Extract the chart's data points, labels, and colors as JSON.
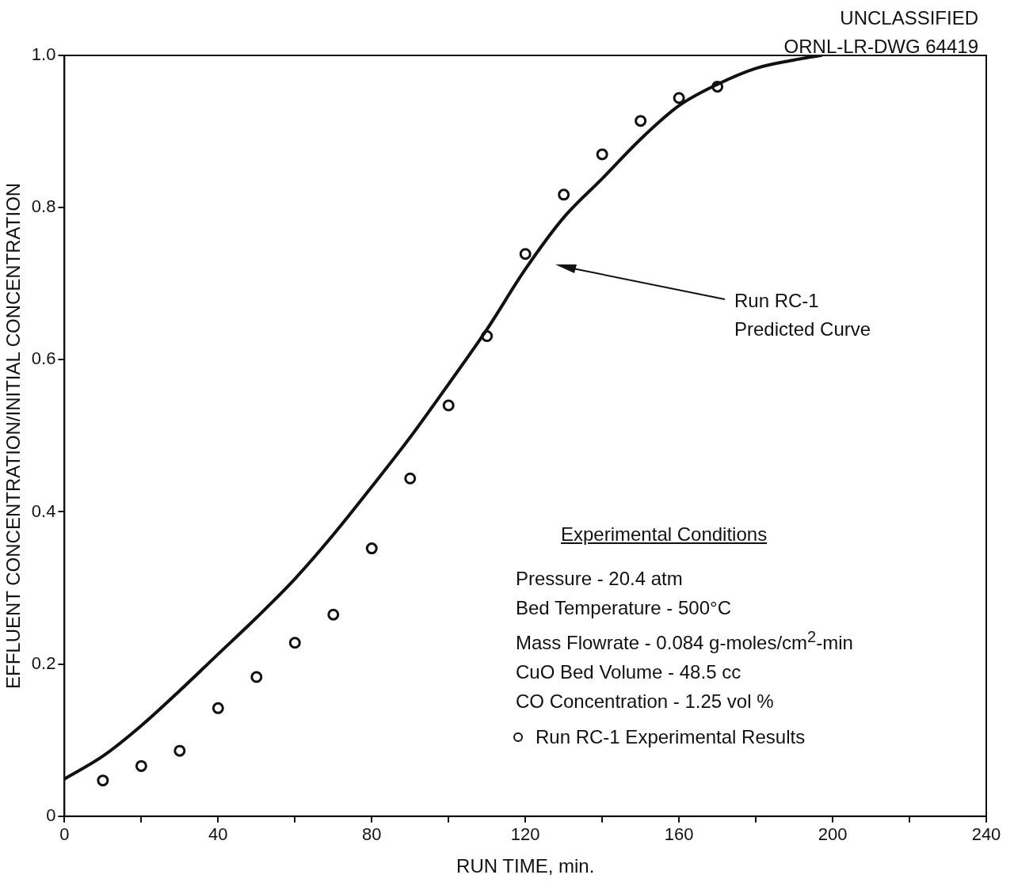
{
  "chart_data": {
    "type": "line",
    "xlabel": "RUN TIME, min.",
    "ylabel": "EFFLUENT CONCENTRATION/INITIAL CONCENTRATION",
    "xlim": [
      0,
      240
    ],
    "xticks": [
      0,
      {
        "value": 20,
        "label": null
      },
      40,
      {
        "value": 60,
        "label": null
      },
      80,
      {
        "value": 100,
        "label": null
      },
      120,
      {
        "value": 140,
        "label": null
      },
      160,
      {
        "value": 180,
        "label": null
      },
      200,
      {
        "value": 220,
        "label": null
      },
      240
    ],
    "ylim": [
      0,
      1
    ],
    "yticks": [
      0,
      0.2,
      0.4,
      0.6,
      0.8,
      {
        "value": 1,
        "label": "1.0"
      }
    ],
    "grid": false,
    "legend": "bottom right",
    "series": [
      {
        "color": "#111111",
        "marker": "none",
        "line_style": "solid",
        "x": [
          0,
          10,
          20,
          30,
          40,
          50,
          60,
          70,
          80,
          90,
          100,
          110,
          120,
          130,
          140,
          150,
          160,
          170,
          180,
          190,
          197
        ],
        "values": [
          0.049,
          0.079,
          0.119,
          0.165,
          0.213,
          0.261,
          0.312,
          0.37,
          0.433,
          0.498,
          0.568,
          0.64,
          0.719,
          0.787,
          0.838,
          0.89,
          0.934,
          0.962,
          0.983,
          0.994,
          1.0
        ]
      },
      {
        "type": "scatter",
        "name": "Run RC-1 Experimental Results",
        "color": "#111111",
        "marker": "circle",
        "x": [
          10,
          20,
          30,
          40,
          50,
          60,
          70,
          80,
          90,
          100,
          110,
          120,
          130,
          140,
          150,
          160,
          170
        ],
        "values": [
          0.047,
          0.066,
          0.086,
          0.142,
          0.183,
          0.228,
          0.265,
          0.352,
          0.444,
          0.54,
          0.631,
          0.739,
          0.817,
          0.87,
          0.914,
          0.944,
          0.959
        ]
      }
    ],
    "annotations": [
      "Run RC-1\nPredicted Curve",
      "UNCLASSIFIED\nORNL-LR-DWG 64419",
      "Experimental Conditions",
      "Pressure - 20.4 atm\nBed Temperature - 500°C\nMass Flowrate - 0.084 g-moles/cm$^{2}$-min\nCuO Bed Volume - 48.5 cc\nCO Concentration - 1.25 vol %"
    ]
  }
}
